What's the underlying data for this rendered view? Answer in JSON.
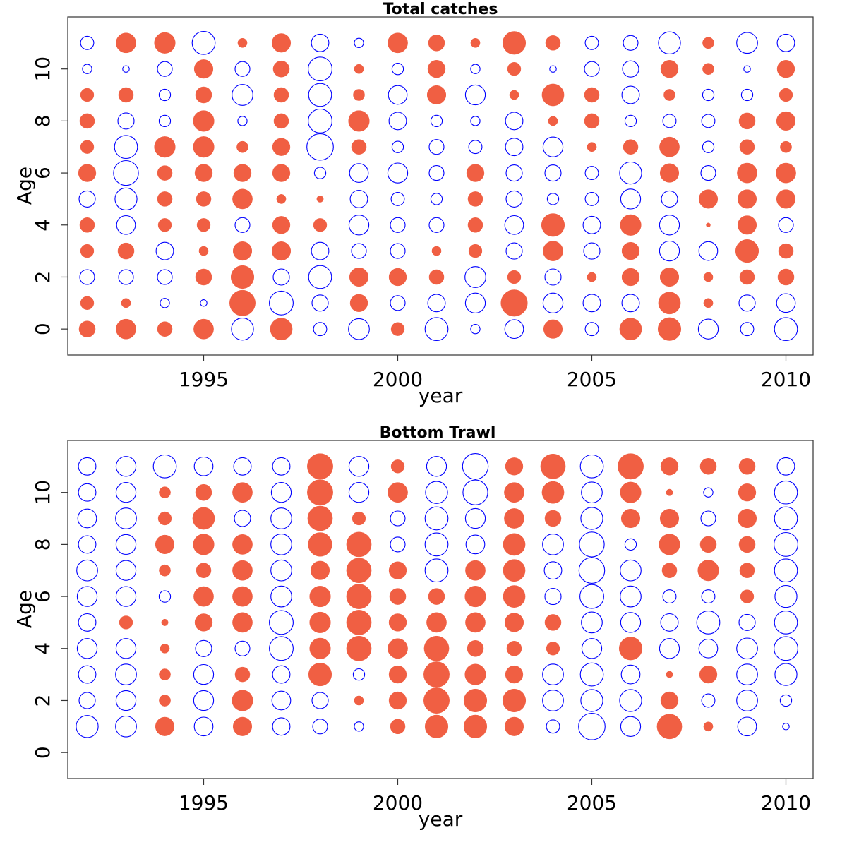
{
  "chart_data": [
    {
      "type": "scatter",
      "title": "Total catches",
      "xlabel": "year",
      "ylabel": "Age",
      "xlim": [
        1991.5,
        2010.7
      ],
      "ylim": [
        -1,
        12
      ],
      "xticks": [
        "1995",
        "2000",
        "2005",
        "2010"
      ],
      "yticks": [
        "0",
        "2",
        "4",
        "6",
        "8",
        "10"
      ],
      "grid": false,
      "years": [
        1992,
        1993,
        1994,
        1995,
        1996,
        1997,
        1998,
        1999,
        2000,
        2001,
        2002,
        2003,
        2004,
        2005,
        2006,
        2007,
        2008,
        2009,
        2010
      ],
      "ages": [
        0,
        1,
        2,
        3,
        4,
        5,
        6,
        7,
        8,
        9,
        10,
        11
      ],
      "colors": {
        "positive": "#f05f43",
        "negative": "#0000ff"
      },
      "residuals": [
        [
          0.3,
          0.2,
          -0.25,
          0.2,
          0.25,
          -0.3,
          0.35,
          0.2,
          0.25,
          0.2,
          -0.1,
          -0.2
        ],
        [
          0.45,
          0.1,
          -0.25,
          0.3,
          -0.4,
          -0.55,
          -0.7,
          -0.6,
          -0.3,
          0.25,
          -0.05,
          0.45
        ],
        [
          0.25,
          -0.1,
          -0.25,
          -0.35,
          0.2,
          0.25,
          0.25,
          0.5,
          -0.15,
          -0.15,
          -0.25,
          0.5
        ],
        [
          0.45,
          -0.05,
          0.3,
          0.1,
          0.2,
          0.25,
          0.35,
          0.5,
          0.5,
          0.3,
          0.4,
          -0.6
        ],
        [
          -0.55,
          0.75,
          0.6,
          0.4,
          -0.25,
          0.45,
          0.35,
          0.15,
          -0.1,
          -0.5,
          -0.25,
          0.1
        ],
        [
          0.55,
          -0.65,
          -0.3,
          0.4,
          0.35,
          0.1,
          0.35,
          0.35,
          0.25,
          0.25,
          0.3,
          0.4
        ],
        [
          -0.2,
          -0.3,
          -0.6,
          -0.35,
          0.2,
          0.05,
          -0.15,
          -0.8,
          -0.65,
          -0.6,
          -0.65,
          -0.35
        ],
        [
          -0.5,
          0.35,
          0.4,
          -0.25,
          -0.45,
          -0.35,
          -0.4,
          0.25,
          0.5,
          0.15,
          0.1,
          -0.1
        ],
        [
          0.2,
          -0.25,
          0.35,
          -0.25,
          -0.25,
          -0.2,
          -0.45,
          -0.15,
          -0.35,
          -0.4,
          -0.15,
          0.45
        ],
        [
          -0.6,
          -0.35,
          0.25,
          0.1,
          -0.25,
          -0.15,
          -0.25,
          -0.25,
          -0.15,
          0.4,
          0.35,
          0.3
        ],
        [
          -0.1,
          -0.45,
          -0.5,
          0.2,
          0.25,
          0.25,
          0.35,
          -0.2,
          -0.1,
          -0.45,
          -0.1,
          0.1
        ],
        [
          -0.4,
          0.8,
          0.2,
          -0.3,
          -0.4,
          -0.3,
          -0.3,
          -0.35,
          -0.35,
          0.1,
          0.2,
          0.6
        ],
        [
          0.4,
          -0.45,
          -0.3,
          0.45,
          0.6,
          -0.15,
          -0.3,
          -0.45,
          0.1,
          0.55,
          -0.05,
          0.25
        ],
        [
          -0.2,
          -0.35,
          0.1,
          -0.3,
          -0.35,
          -0.2,
          -0.2,
          0.1,
          0.25,
          0.25,
          -0.25,
          -0.2
        ],
        [
          0.55,
          -0.35,
          0.35,
          0.35,
          0.5,
          -0.45,
          -0.55,
          0.25,
          -0.15,
          -0.35,
          -0.3,
          -0.25
        ],
        [
          0.6,
          0.55,
          0.4,
          -0.45,
          -0.45,
          -0.3,
          0.4,
          0.45,
          -0.2,
          0.15,
          0.35,
          -0.55
        ],
        [
          -0.45,
          0.1,
          0.1,
          -0.4,
          0.02,
          0.4,
          -0.25,
          -0.15,
          -0.2,
          -0.15,
          0.15,
          0.15
        ],
        [
          -0.2,
          -0.3,
          0.25,
          0.6,
          0.4,
          0.4,
          0.45,
          0.25,
          0.3,
          -0.15,
          -0.05,
          -0.5
        ],
        [
          -0.6,
          -0.4,
          0.3,
          0.25,
          -0.25,
          0.4,
          0.45,
          0.15,
          0.4,
          0.2,
          0.35,
          -0.35
        ]
      ]
    },
    {
      "type": "scatter",
      "title": "Bottom Trawl",
      "xlabel": "year",
      "ylabel": "Age",
      "xlim": [
        1991.5,
        2010.7
      ],
      "ylim": [
        -1,
        12
      ],
      "xticks": [
        "1995",
        "2000",
        "2005",
        "2010"
      ],
      "yticks": [
        "0",
        "2",
        "4",
        "6",
        "8",
        "10"
      ],
      "grid": false,
      "years": [
        1992,
        1993,
        1994,
        1995,
        1996,
        1997,
        1998,
        1999,
        2000,
        2001,
        2002,
        2003,
        2004,
        2005,
        2006,
        2007,
        2008,
        2009,
        2010
      ],
      "ages": [
        1,
        2,
        3,
        4,
        5,
        6,
        7,
        8,
        9,
        10,
        11
      ],
      "colors": {
        "positive": "#f05f43",
        "negative": "#0000ff"
      },
      "residuals": [
        [
          -0.55,
          -0.3,
          -0.35,
          -0.45,
          -0.35,
          -0.45,
          -0.5,
          -0.35,
          -0.4,
          -0.35,
          -0.35
        ],
        [
          -0.5,
          -0.45,
          -0.5,
          -0.45,
          0.2,
          -0.45,
          -0.45,
          -0.45,
          -0.5,
          -0.45,
          -0.45
        ],
        [
          0.4,
          0.15,
          0.15,
          0.1,
          0.05,
          -0.15,
          0.15,
          0.4,
          0.2,
          0.15,
          -0.6
        ],
        [
          -0.4,
          -0.45,
          -0.45,
          -0.3,
          0.35,
          0.45,
          0.25,
          0.5,
          0.55,
          0.3,
          -0.4
        ],
        [
          0.4,
          0.5,
          0.25,
          -0.25,
          0.45,
          0.45,
          0.45,
          0.45,
          -0.3,
          0.45,
          -0.35
        ],
        [
          -0.35,
          -0.4,
          -0.35,
          -0.65,
          -0.65,
          -0.5,
          -0.5,
          -0.5,
          -0.5,
          -0.45,
          -0.35
        ],
        [
          -0.25,
          -0.3,
          0.6,
          0.5,
          0.5,
          0.5,
          0.4,
          0.65,
          0.7,
          0.75,
          0.75
        ],
        [
          -0.1,
          0.1,
          -0.15,
          0.7,
          0.7,
          0.7,
          0.7,
          0.7,
          0.2,
          -0.45,
          -0.45
        ],
        [
          0.25,
          0.35,
          0.35,
          0.45,
          0.35,
          0.3,
          0.35,
          -0.25,
          -0.25,
          0.45,
          0.2
        ],
        [
          0.6,
          0.75,
          0.75,
          0.7,
          0.45,
          0.3,
          -0.6,
          -0.6,
          -0.6,
          -0.55,
          -0.45
        ],
        [
          0.6,
          0.6,
          0.5,
          0.3,
          0.45,
          0.5,
          0.45,
          -0.4,
          -0.45,
          -0.7,
          -0.75
        ],
        [
          0.4,
          0.6,
          0.35,
          0.25,
          0.4,
          0.55,
          0.55,
          0.55,
          0.45,
          0.45,
          0.35
        ],
        [
          -0.2,
          -0.5,
          -0.5,
          0.2,
          0.3,
          -0.3,
          -0.35,
          -0.5,
          0.3,
          0.55,
          0.7
        ],
        [
          -0.8,
          -0.55,
          -0.6,
          -0.45,
          -0.5,
          -0.65,
          -0.75,
          -0.7,
          -0.55,
          -0.5,
          -0.6
        ],
        [
          -0.45,
          -0.55,
          -0.4,
          0.6,
          -0.45,
          -0.5,
          -0.5,
          -0.15,
          0.4,
          0.5,
          0.75
        ],
        [
          0.7,
          0.35,
          0.05,
          -0.45,
          -0.35,
          -0.2,
          0.25,
          0.5,
          0.4,
          0.05,
          0.35
        ],
        [
          0.1,
          -0.2,
          0.35,
          -0.4,
          -0.6,
          -0.2,
          0.5,
          0.3,
          -0.25,
          -0.1,
          0.3
        ],
        [
          -0.4,
          -0.5,
          -0.5,
          -0.5,
          -0.3,
          0.2,
          0.25,
          0.3,
          0.4,
          0.35,
          0.3
        ],
        [
          -0.05,
          -0.15,
          -0.55,
          -0.65,
          -0.6,
          -0.55,
          -0.6,
          -0.65,
          -0.6,
          -0.6,
          -0.35
        ]
      ]
    }
  ]
}
